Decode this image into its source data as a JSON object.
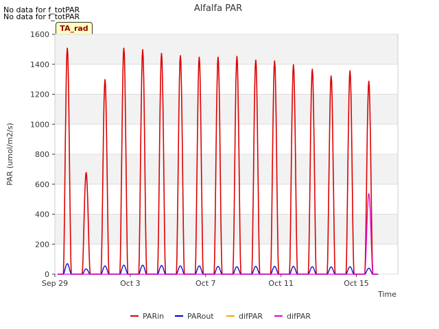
{
  "notes": [
    "No data for f_totPAR",
    "No data for f_totPAR"
  ],
  "badge": "TA_rad",
  "chart_data": {
    "type": "line",
    "title": "Alfalfa PAR",
    "xlabel": "Time",
    "ylabel": "PAR (umol/m2/s)",
    "ylim": [
      0,
      1600
    ],
    "yticks": [
      0,
      200,
      400,
      600,
      800,
      1000,
      1200,
      1400,
      1600
    ],
    "xlim": [
      0,
      18.2
    ],
    "xticks": [
      {
        "v": 0,
        "label": "Sep 29"
      },
      {
        "v": 4,
        "label": "Oct 3"
      },
      {
        "v": 8,
        "label": "Oct 7"
      },
      {
        "v": 12,
        "label": "Oct 11"
      },
      {
        "v": 16,
        "label": "Oct 15"
      }
    ],
    "grid": true,
    "legend_position": "bottom",
    "series": [
      {
        "name": "PARin",
        "color": "#dd0000",
        "day_peaks": [
          1510,
          680,
          1300,
          1510,
          1500,
          1475,
          1460,
          1450,
          1450,
          1455,
          1430,
          1425,
          1400,
          1370,
          1325,
          1360,
          1290
        ]
      },
      {
        "name": "PARout",
        "color": "#0000cc",
        "day_peaks": [
          70,
          35,
          55,
          60,
          60,
          58,
          55,
          55,
          52,
          50,
          52,
          52,
          52,
          50,
          48,
          50,
          40
        ]
      },
      {
        "name": "difPAR",
        "color": "#ffa500",
        "day_peaks": []
      },
      {
        "name": "difPAR",
        "color": "#dd00dd",
        "day_peaks": [
          0,
          0,
          0,
          0,
          0,
          0,
          0,
          0,
          0,
          0,
          0,
          0,
          0,
          0,
          0,
          0,
          540
        ]
      }
    ]
  }
}
